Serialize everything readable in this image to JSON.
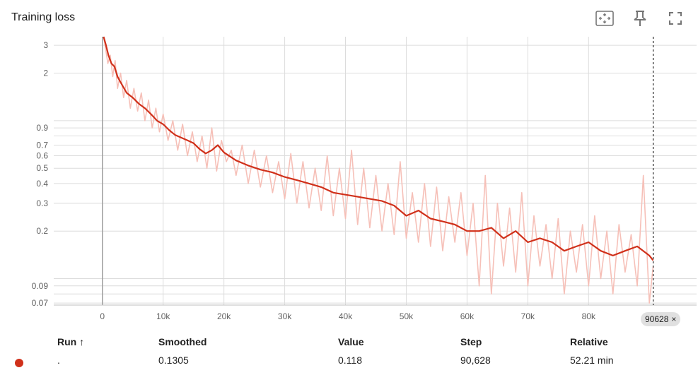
{
  "header": {
    "title": "Training loss",
    "icons": [
      "fit-domain-icon",
      "pin-icon",
      "fullscreen-icon"
    ]
  },
  "colors": {
    "smoothed": "#d0301a",
    "raw": "#f6c0b8",
    "grid": "#dcdcdc",
    "axis_text": "#616161",
    "cursor": "#212121"
  },
  "chart_data": {
    "type": "line",
    "title": "Training loss",
    "xlabel": "",
    "ylabel": "",
    "yscale": "log",
    "xlim": [
      -8000,
      98000
    ],
    "ylim": [
      0.068,
      3.4
    ],
    "x_ticks": [
      0,
      10000,
      20000,
      30000,
      40000,
      50000,
      60000,
      70000,
      80000
    ],
    "x_tick_labels": [
      "0",
      "10k",
      "20k",
      "30k",
      "40k",
      "50k",
      "60k",
      "70k",
      "80k"
    ],
    "y_ticks": [
      0.07,
      0.09,
      0.2,
      0.3,
      0.4,
      0.5,
      0.6,
      0.7,
      0.9,
      2,
      3
    ],
    "y_tick_labels": [
      "0.07",
      "0.09",
      "0.2",
      "0.3",
      "0.4",
      "0.5",
      "0.6",
      "0.7",
      "0.9",
      "2",
      "3"
    ],
    "y_minor_gridlines": [
      0.08,
      0.1,
      0.8,
      1.0
    ],
    "grid": true,
    "cursor_step": 90628,
    "series": [
      {
        "name": "Smoothed",
        "x": [
          200,
          600,
          1000,
          1500,
          2000,
          2500,
          3000,
          4000,
          5000,
          6000,
          7000,
          8000,
          9000,
          10000,
          11000,
          12000,
          13000,
          14000,
          15000,
          16000,
          17000,
          18000,
          19000,
          20000,
          22000,
          24000,
          26000,
          28000,
          30000,
          32000,
          34000,
          36000,
          38000,
          40000,
          42000,
          44000,
          46000,
          48000,
          50000,
          52000,
          54000,
          56000,
          58000,
          60000,
          62000,
          64000,
          66000,
          68000,
          70000,
          72000,
          74000,
          76000,
          78000,
          80000,
          82000,
          84000,
          86000,
          88000,
          90000,
          90628
        ],
        "y": [
          3.4,
          3.0,
          2.6,
          2.3,
          2.2,
          1.9,
          1.75,
          1.5,
          1.4,
          1.28,
          1.2,
          1.1,
          1.0,
          0.95,
          0.87,
          0.81,
          0.78,
          0.75,
          0.72,
          0.66,
          0.62,
          0.65,
          0.7,
          0.63,
          0.56,
          0.52,
          0.49,
          0.47,
          0.44,
          0.42,
          0.4,
          0.38,
          0.35,
          0.34,
          0.33,
          0.32,
          0.31,
          0.29,
          0.25,
          0.27,
          0.24,
          0.23,
          0.22,
          0.2,
          0.2,
          0.21,
          0.18,
          0.2,
          0.17,
          0.18,
          0.17,
          0.15,
          0.16,
          0.17,
          0.15,
          0.14,
          0.15,
          0.16,
          0.14,
          0.1305
        ]
      },
      {
        "name": "Value",
        "x": [
          200,
          500,
          900,
          1300,
          1700,
          2100,
          2500,
          3000,
          3500,
          4000,
          4600,
          5200,
          5800,
          6400,
          7000,
          7600,
          8200,
          8800,
          9400,
          10000,
          10800,
          11600,
          12400,
          13200,
          14000,
          14800,
          15600,
          16400,
          17200,
          18000,
          18800,
          19600,
          20400,
          21200,
          22000,
          23000,
          24000,
          25000,
          26000,
          27000,
          28000,
          29000,
          30000,
          31000,
          32000,
          33000,
          34000,
          35000,
          36000,
          37000,
          38000,
          39000,
          40000,
          41000,
          42000,
          43000,
          44000,
          45000,
          46000,
          47000,
          48000,
          49000,
          50000,
          51000,
          52000,
          53000,
          54000,
          55000,
          56000,
          57000,
          58000,
          59000,
          60000,
          61000,
          62000,
          63000,
          64000,
          65000,
          66000,
          67000,
          68000,
          69000,
          70000,
          71000,
          72000,
          73000,
          74000,
          75000,
          76000,
          77000,
          78000,
          79000,
          80000,
          81000,
          82000,
          83000,
          84000,
          85000,
          86000,
          87000,
          88000,
          89000,
          90000,
          90628
        ],
        "y": [
          3.4,
          2.9,
          2.3,
          2.6,
          1.9,
          2.4,
          1.6,
          2.0,
          1.4,
          1.8,
          1.2,
          1.6,
          1.15,
          1.5,
          1.0,
          1.35,
          0.9,
          1.2,
          0.85,
          1.1,
          0.75,
          1.0,
          0.65,
          0.95,
          0.6,
          0.85,
          0.55,
          0.8,
          0.5,
          0.9,
          0.48,
          0.75,
          0.55,
          0.65,
          0.45,
          0.7,
          0.4,
          0.65,
          0.38,
          0.6,
          0.35,
          0.55,
          0.32,
          0.62,
          0.3,
          0.55,
          0.28,
          0.5,
          0.27,
          0.6,
          0.25,
          0.5,
          0.24,
          0.65,
          0.22,
          0.5,
          0.21,
          0.45,
          0.2,
          0.4,
          0.19,
          0.55,
          0.18,
          0.35,
          0.17,
          0.4,
          0.16,
          0.38,
          0.15,
          0.33,
          0.17,
          0.35,
          0.14,
          0.3,
          0.09,
          0.45,
          0.08,
          0.3,
          0.12,
          0.28,
          0.11,
          0.35,
          0.09,
          0.25,
          0.12,
          0.22,
          0.1,
          0.24,
          0.08,
          0.2,
          0.11,
          0.22,
          0.09,
          0.25,
          0.1,
          0.2,
          0.08,
          0.22,
          0.11,
          0.19,
          0.09,
          0.45,
          0.07,
          0.12
        ]
      }
    ]
  },
  "cursor_badge": {
    "label": "90628",
    "close": "×"
  },
  "table": {
    "headers": {
      "run": "Run ↑",
      "smoothed": "Smoothed",
      "value": "Value",
      "step": "Step",
      "relative": "Relative"
    },
    "rows": [
      {
        "run": ".",
        "smoothed": "0.1305",
        "value": "0.118",
        "step": "90,628",
        "relative": "52.21 min"
      }
    ]
  }
}
